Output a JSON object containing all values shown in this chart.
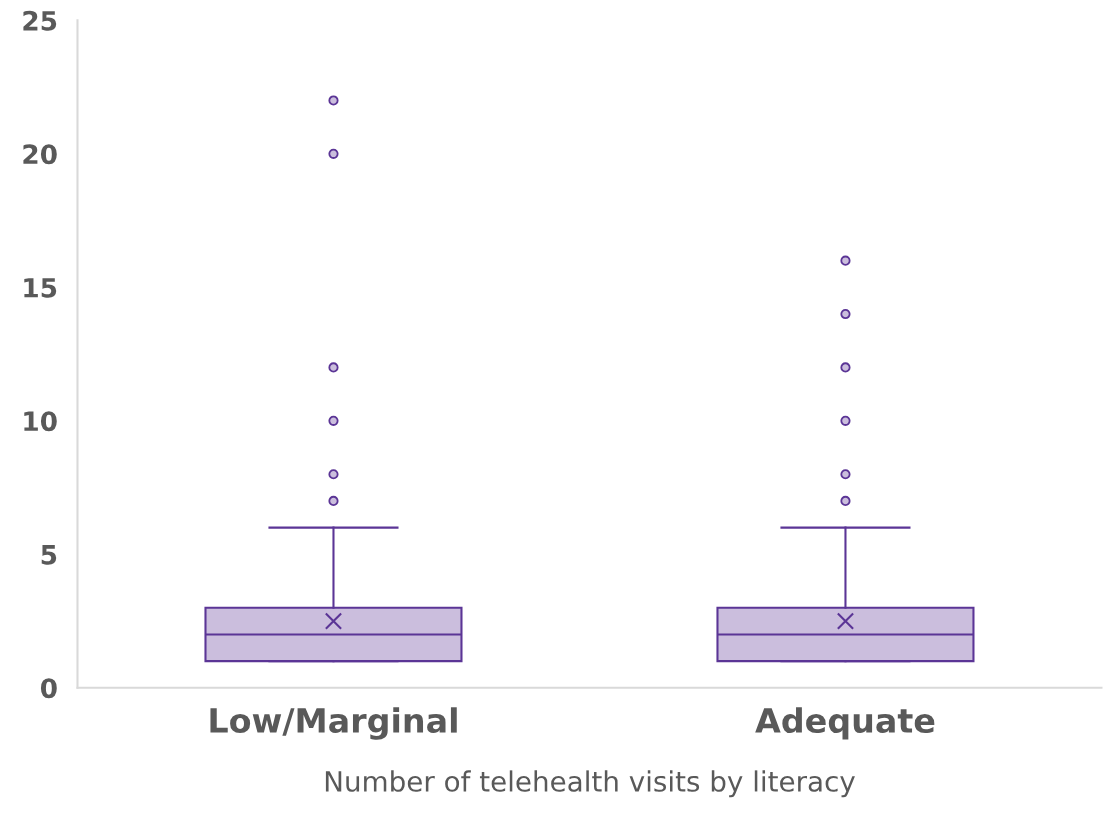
{
  "chart_data": {
    "type": "box",
    "xlabel": "Number of telehealth visits by literacy",
    "categories": [
      "Low/Marginal",
      "Adequate"
    ],
    "boxes": [
      {
        "low": 1,
        "q1": 1,
        "median": 2,
        "q3": 3,
        "high": 6,
        "mean": 2.5,
        "outliers": [
          7,
          8,
          10,
          12,
          20,
          22
        ]
      },
      {
        "low": 1,
        "q1": 1,
        "median": 2,
        "q3": 3,
        "high": 6,
        "mean": 2.5,
        "outliers": [
          7,
          8,
          10,
          12,
          14,
          16
        ]
      }
    ],
    "color": "#5b3596",
    "ylim": [
      0,
      25
    ],
    "yticks": [
      0,
      5,
      10,
      15,
      20,
      25
    ],
    "grid": false,
    "marker": "circle"
  }
}
